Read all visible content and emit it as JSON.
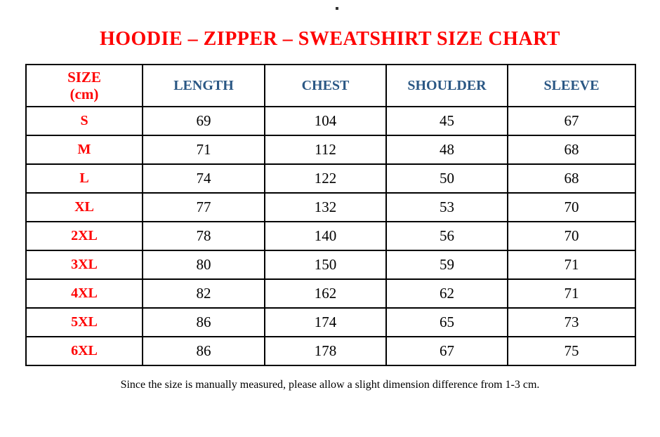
{
  "page": {
    "top_dot": ".",
    "title": "HOODIE – ZIPPER – SWEATSHIRT SIZE CHART",
    "footnote": "Since the size is manually measured, please allow a slight dimension difference from 1-3 cm."
  },
  "colors": {
    "title_red": "#fe0000",
    "header_blue": "#2a5784",
    "body_text": "#000000",
    "table_border": "#000000",
    "background": "#ffffff"
  },
  "table": {
    "header": {
      "size_label_line1": "SIZE",
      "size_label_line2": "(cm)",
      "columns": [
        "LENGTH",
        "CHEST",
        "SHOULDER",
        "SLEEVE"
      ]
    },
    "rows": [
      {
        "size": "S",
        "values": [
          "69",
          "104",
          "45",
          "67"
        ]
      },
      {
        "size": "M",
        "values": [
          "71",
          "112",
          "48",
          "68"
        ]
      },
      {
        "size": "L",
        "values": [
          "74",
          "122",
          "50",
          "68"
        ]
      },
      {
        "size": "XL",
        "values": [
          "77",
          "132",
          "53",
          "70"
        ]
      },
      {
        "size": "2XL",
        "values": [
          "78",
          "140",
          "56",
          "70"
        ]
      },
      {
        "size": "3XL",
        "values": [
          "80",
          "150",
          "59",
          "71"
        ]
      },
      {
        "size": "4XL",
        "values": [
          "82",
          "162",
          "62",
          "71"
        ]
      },
      {
        "size": "5XL",
        "values": [
          "86",
          "174",
          "65",
          "73"
        ]
      },
      {
        "size": "6XL",
        "values": [
          "86",
          "178",
          "67",
          "75"
        ]
      }
    ]
  },
  "chart_data": {
    "type": "table",
    "title": "HOODIE – ZIPPER – SWEATSHIRT SIZE CHART",
    "columns": [
      "SIZE (cm)",
      "LENGTH",
      "CHEST",
      "SHOULDER",
      "SLEEVE"
    ],
    "rows": [
      [
        "S",
        69,
        104,
        45,
        67
      ],
      [
        "M",
        71,
        112,
        48,
        68
      ],
      [
        "L",
        74,
        122,
        50,
        68
      ],
      [
        "XL",
        77,
        132,
        53,
        70
      ],
      [
        "2XL",
        78,
        140,
        56,
        70
      ],
      [
        "3XL",
        80,
        150,
        59,
        71
      ],
      [
        "4XL",
        82,
        162,
        62,
        71
      ],
      [
        "5XL",
        86,
        174,
        65,
        73
      ],
      [
        "6XL",
        86,
        178,
        67,
        75
      ]
    ],
    "footnote": "Since the size is manually measured, please allow a slight dimension difference from 1-3 cm."
  }
}
